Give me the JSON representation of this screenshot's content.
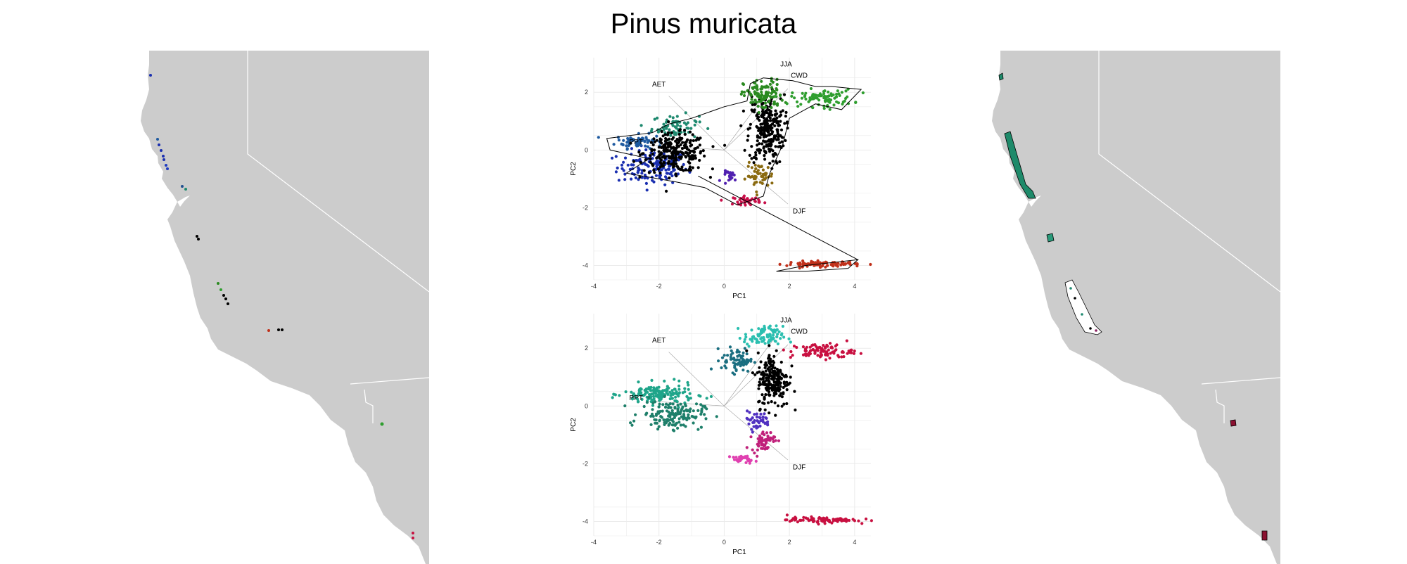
{
  "title": "Pinus muricata",
  "colors": {
    "land": "#cccccc",
    "border": "#ffffff",
    "grid": "#ebebeb",
    "hull": "#000000"
  },
  "chart_data": [
    {
      "type": "scatter",
      "panel": "top",
      "xlabel": "PC1",
      "ylabel": "PC2",
      "xlim": [
        -4,
        4.5
      ],
      "ylim": [
        -4.5,
        3.2
      ],
      "xticks": [
        "-4",
        "-2",
        "0",
        "2",
        "4"
      ],
      "yticks": [
        "-4",
        "-2",
        "0",
        "2"
      ],
      "grid": true,
      "loadings": [
        {
          "label": "JJA",
          "x": 1.9,
          "y": 2.9
        },
        {
          "label": "CWD",
          "x": 2.3,
          "y": 2.5
        },
        {
          "label": "AET",
          "x": -2.0,
          "y": 2.2
        },
        {
          "label": "PPT",
          "x": -2.7,
          "y": 0.2
        },
        {
          "label": "DJF",
          "x": 2.3,
          "y": -2.2
        }
      ],
      "clusters": [
        {
          "color": "#1a2fb0",
          "cx": -2.2,
          "cy": -0.6,
          "sx": 0.9,
          "sy": 0.5,
          "n": 140
        },
        {
          "color": "#1e5aa0",
          "cx": -2.6,
          "cy": 0.3,
          "sx": 0.6,
          "sy": 0.2,
          "n": 70
        },
        {
          "color": "#1f8a70",
          "cx": -1.5,
          "cy": 0.8,
          "sx": 0.6,
          "sy": 0.35,
          "n": 70
        },
        {
          "color": "#000000",
          "cx": -1.5,
          "cy": -0.1,
          "sx": 0.8,
          "sy": 0.55,
          "n": 260
        },
        {
          "color": "#000000",
          "cx": 1.3,
          "cy": 0.7,
          "sx": 0.45,
          "sy": 1.0,
          "n": 260
        },
        {
          "color": "#2a8a20",
          "cx": 1.2,
          "cy": 1.9,
          "sx": 0.5,
          "sy": 0.45,
          "n": 110
        },
        {
          "color": "#2f9e2f",
          "cx": 3.0,
          "cy": 1.8,
          "sx": 0.8,
          "sy": 0.25,
          "n": 90
        },
        {
          "color": "#8a6a10",
          "cx": 1.1,
          "cy": -0.9,
          "sx": 0.35,
          "sy": 0.35,
          "n": 50
        },
        {
          "color": "#5020b0",
          "cx": 0.2,
          "cy": -0.9,
          "sx": 0.2,
          "sy": 0.15,
          "n": 20
        },
        {
          "color": "#c8104a",
          "cx": 0.7,
          "cy": -1.75,
          "sx": 0.35,
          "sy": 0.12,
          "n": 40
        },
        {
          "color": "#c0301a",
          "cx": 3.0,
          "cy": -3.95,
          "sx": 0.9,
          "sy": 0.08,
          "n": 90
        }
      ],
      "hulls": [
        [
          [
            -3.6,
            0.4
          ],
          [
            -2.2,
            0.6
          ],
          [
            -1.7,
            0.9
          ],
          [
            -1.0,
            1.1
          ],
          [
            0.0,
            1.5
          ],
          [
            0.7,
            1.7
          ],
          [
            0.8,
            2.3
          ],
          [
            1.2,
            2.5
          ],
          [
            2.1,
            2.4
          ],
          [
            2.8,
            2.2
          ],
          [
            3.3,
            2.2
          ],
          [
            4.2,
            2.1
          ],
          [
            3.6,
            1.4
          ],
          [
            2.8,
            1.6
          ],
          [
            2.0,
            1.1
          ],
          [
            1.8,
            0.2
          ],
          [
            1.4,
            -0.8
          ],
          [
            1.2,
            -1.6
          ],
          [
            0.4,
            -1.9
          ],
          [
            -0.6,
            -1.3
          ],
          [
            -1.5,
            -1.1
          ],
          [
            -3.0,
            -0.8
          ],
          [
            -2.3,
            -0.3
          ],
          [
            -3.5,
            0.0
          ]
        ],
        [
          [
            1.6,
            -4.2
          ],
          [
            2.5,
            -4.0
          ],
          [
            4.1,
            -3.8
          ],
          [
            3.8,
            -4.1
          ],
          [
            2.5,
            -4.2
          ]
        ]
      ],
      "connector": [
        [
          -0.8,
          -0.9
        ],
        [
          4.1,
          -3.8
        ]
      ]
    },
    {
      "type": "scatter",
      "panel": "bottom",
      "xlabel": "PC1",
      "ylabel": "PC2",
      "xlim": [
        -4,
        4.5
      ],
      "ylim": [
        -4.5,
        3.2
      ],
      "xticks": [
        "-4",
        "-2",
        "0",
        "2",
        "4"
      ],
      "yticks": [
        "-4",
        "-2",
        "0",
        "2"
      ],
      "grid": true,
      "loadings": [
        {
          "label": "JJA",
          "x": 1.9,
          "y": 2.9
        },
        {
          "label": "CWD",
          "x": 2.3,
          "y": 2.5
        },
        {
          "label": "AET",
          "x": -2.0,
          "y": 2.2
        },
        {
          "label": "PPT",
          "x": -2.7,
          "y": 0.2
        },
        {
          "label": "DJF",
          "x": 2.3,
          "y": -2.2
        }
      ],
      "clusters": [
        {
          "color": "#1fa58a",
          "cx": -2.0,
          "cy": 0.4,
          "sx": 0.9,
          "sy": 0.3,
          "n": 160
        },
        {
          "color": "#1e7f6a",
          "cx": -1.6,
          "cy": -0.3,
          "sx": 0.8,
          "sy": 0.4,
          "n": 150
        },
        {
          "color": "#2bbfb0",
          "cx": 1.2,
          "cy": 2.4,
          "sx": 0.5,
          "sy": 0.3,
          "n": 90
        },
        {
          "color": "#1a6e80",
          "cx": 0.4,
          "cy": 1.6,
          "sx": 0.4,
          "sy": 0.35,
          "n": 70
        },
        {
          "color": "#000000",
          "cx": 1.5,
          "cy": 0.9,
          "sx": 0.4,
          "sy": 0.8,
          "n": 210
        },
        {
          "color": "#5030c0",
          "cx": 1.0,
          "cy": -0.5,
          "sx": 0.35,
          "sy": 0.25,
          "n": 40
        },
        {
          "color": "#c0207a",
          "cx": 1.2,
          "cy": -1.2,
          "sx": 0.3,
          "sy": 0.3,
          "n": 60
        },
        {
          "color": "#e040b0",
          "cx": 0.6,
          "cy": -1.85,
          "sx": 0.3,
          "sy": 0.1,
          "n": 30
        },
        {
          "color": "#c81040",
          "cx": 3.0,
          "cy": 1.9,
          "sx": 0.8,
          "sy": 0.22,
          "n": 90
        },
        {
          "color": "#c81040",
          "cx": 3.0,
          "cy": -3.95,
          "sx": 0.9,
          "sy": 0.08,
          "n": 90
        }
      ],
      "hulls": [],
      "connector": []
    }
  ]
}
